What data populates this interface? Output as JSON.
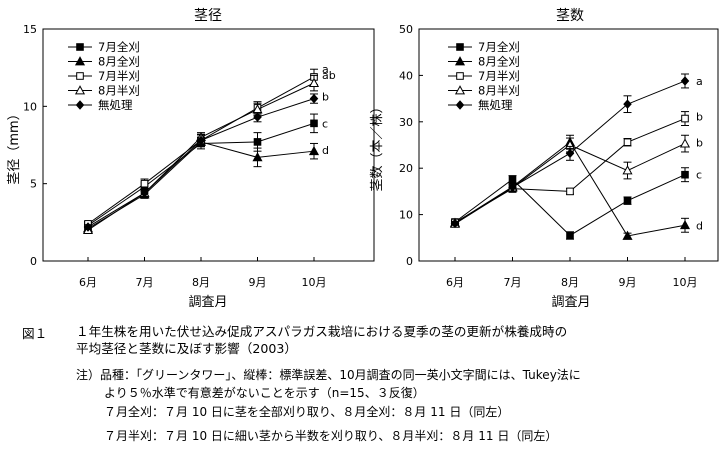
{
  "chart_data": [
    {
      "type": "line",
      "title": "茎径",
      "xlabel": "調査月",
      "ylabel": "茎径（mm）",
      "categories": [
        "6月",
        "7月",
        "8月",
        "9月",
        "10月"
      ],
      "ylim": [
        0,
        15
      ],
      "yticks": [
        "0",
        "5",
        "10",
        "15"
      ],
      "series": [
        {
          "name": "7月全刈",
          "marker": "square-filled",
          "values": [
            2.3,
            4.8,
            7.6,
            7.7,
            8.9
          ],
          "errors": [
            0.15,
            0.3,
            0.35,
            0.6,
            0.6
          ],
          "letter": "c"
        },
        {
          "name": "8月全刈",
          "marker": "triangle-filled",
          "values": [
            2.1,
            4.3,
            7.7,
            6.7,
            7.1
          ],
          "errors": [
            0.15,
            0.25,
            0.3,
            0.6,
            0.5
          ],
          "letter": "d"
        },
        {
          "name": "7月半刈",
          "marker": "square-open",
          "values": [
            2.4,
            5.0,
            7.8,
            9.9,
            11.9
          ],
          "errors": [
            0.15,
            0.3,
            0.4,
            0.4,
            0.5
          ],
          "letter": "a"
        },
        {
          "name": "8月半刈",
          "marker": "triangle-open",
          "values": [
            2.0,
            4.4,
            8.0,
            9.8,
            11.5
          ],
          "errors": [
            0.15,
            0.25,
            0.3,
            0.4,
            0.5
          ],
          "letter": "ab"
        },
        {
          "name": "無処理",
          "marker": "diamond-filled",
          "values": [
            2.2,
            4.4,
            7.8,
            9.3,
            10.5
          ],
          "errors": [
            0.15,
            0.25,
            0.35,
            0.3,
            0.3
          ],
          "letter": "b"
        }
      ]
    },
    {
      "type": "line",
      "title": "茎数",
      "xlabel": "調査月",
      "ylabel": "茎数（本／株）",
      "categories": [
        "6月",
        "7月",
        "8月",
        "9月",
        "10月"
      ],
      "ylim": [
        0,
        50
      ],
      "yticks": [
        "0",
        "10",
        "20",
        "30",
        "40",
        "50"
      ],
      "series": [
        {
          "name": "7月全刈",
          "marker": "square-filled",
          "values": [
            8.4,
            17.6,
            5.5,
            13.0,
            18.6
          ],
          "errors": [
            0.4,
            0.8,
            0.8,
            0.8,
            1.5
          ],
          "letter": "c"
        },
        {
          "name": "8月全刈",
          "marker": "triangle-filled",
          "values": [
            8.2,
            16.0,
            25.6,
            5.4,
            7.7
          ],
          "errors": [
            0.4,
            0.8,
            1.5,
            0.6,
            1.5
          ],
          "letter": "d"
        },
        {
          "name": "7月半刈",
          "marker": "square-open",
          "values": [
            8.3,
            15.6,
            15.0,
            25.6,
            30.7
          ],
          "errors": [
            0.4,
            0.8,
            0.6,
            0.8,
            1.5
          ],
          "letter": "b"
        },
        {
          "name": "8月半刈",
          "marker": "triangle-open",
          "values": [
            8.0,
            15.8,
            25.0,
            19.5,
            25.3
          ],
          "errors": [
            0.4,
            0.8,
            1.5,
            1.8,
            1.8
          ],
          "letter": "b"
        },
        {
          "name": "無処理",
          "marker": "diamond-filled",
          "values": [
            8.1,
            15.9,
            23.2,
            33.8,
            38.8
          ],
          "errors": [
            0.4,
            0.8,
            1.5,
            1.8,
            1.5
          ],
          "letter": "a"
        }
      ]
    }
  ],
  "caption": {
    "label": "図１",
    "line1": "１年生株を用いた伏せ込み促成アスパラガス栽培における夏季の茎の更新が株養成時の",
    "line2": "平均茎径と茎数に及ぼす影響（2003）"
  },
  "notes": {
    "line1": "注）品種：「グリーンタワー」、縦棒：標準誤差、10月調査の同一英小文字間には、Tukey法に",
    "line2": "より５％水準で有意差がないことを示す（n=15、３反復）",
    "line3": "７月全刈：７月 10 日に茎を全部刈り取り、８月全刈：８月 11 日（同左）",
    "line4": "７月半刈：７月 10 日に細い茎から半数を刈り取り、８月半刈：８月 11 日（同左）"
  }
}
